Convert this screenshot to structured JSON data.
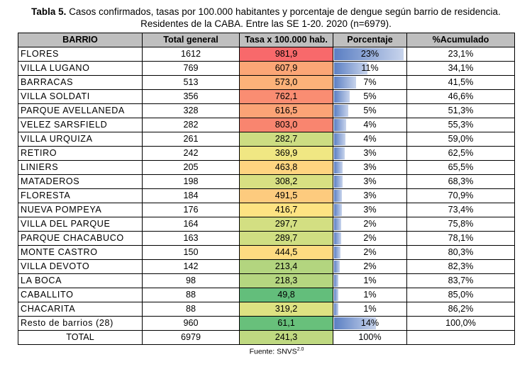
{
  "caption": {
    "label": "Tabla 5.",
    "line1": " Casos confirmados, tasas por 100.000 habitantes y porcentaje de dengue según barrio de residencia.",
    "line2": "Residentes de la CABA. Entre las SE 1-20. 2020 (n=6979)."
  },
  "headers": [
    "BARRIO",
    "Total general",
    "Tasa x 100.000 hab.",
    "Porcentaje",
    "%Acumulado"
  ],
  "rows": [
    {
      "barrio": "FLORES",
      "total": "1612",
      "tasa": "981,9",
      "pct": "23%",
      "pct_value": 23.1,
      "acum": "23,1%",
      "tasa_color": "#f8696b"
    },
    {
      "barrio": "VILLA LUGANO",
      "total": "769",
      "tasa": "607,9",
      "pct": "11%",
      "pct_value": 11.0,
      "acum": "34,1%",
      "tasa_color": "#fba676"
    },
    {
      "barrio": "BARRACAS",
      "total": "513",
      "tasa": "573,0",
      "pct": "7%",
      "pct_value": 7.4,
      "acum": "41,5%",
      "tasa_color": "#fcb279"
    },
    {
      "barrio": "VILLA SOLDATI",
      "total": "356",
      "tasa": "762,1",
      "pct": "5%",
      "pct_value": 5.1,
      "acum": "46,6%",
      "tasa_color": "#fa8d72"
    },
    {
      "barrio": "PARQUE AVELLANEDA",
      "total": "328",
      "tasa": "616,5",
      "pct": "5%",
      "pct_value": 4.7,
      "acum": "51,3%",
      "tasa_color": "#fba376"
    },
    {
      "barrio": "VELEZ SARSFIELD",
      "total": "282",
      "tasa": "803,0",
      "pct": "4%",
      "pct_value": 4.0,
      "acum": "55,3%",
      "tasa_color": "#f9856f"
    },
    {
      "barrio": "VILLA URQUIZA",
      "total": "261",
      "tasa": "282,7",
      "pct": "4%",
      "pct_value": 3.7,
      "acum": "59,0%",
      "tasa_color": "#cddd82"
    },
    {
      "barrio": "RETIRO",
      "total": "242",
      "tasa": "369,9",
      "pct": "3%",
      "pct_value": 3.5,
      "acum": "62,5%",
      "tasa_color": "#f0e783"
    },
    {
      "barrio": "LINIERS",
      "total": "205",
      "tasa": "463,8",
      "pct": "3%",
      "pct_value": 2.9,
      "acum": "65,5%",
      "tasa_color": "#fed480"
    },
    {
      "barrio": "MATADEROS",
      "total": "198",
      "tasa": "308,2",
      "pct": "3%",
      "pct_value": 2.8,
      "acum": "68,3%",
      "tasa_color": "#d8e082"
    },
    {
      "barrio": "FLORESTA",
      "total": "184",
      "tasa": "491,5",
      "pct": "3%",
      "pct_value": 2.6,
      "acum": "70,9%",
      "tasa_color": "#fdcb7e"
    },
    {
      "barrio": "NUEVA POMPEYA",
      "total": "176",
      "tasa": "416,7",
      "pct": "3%",
      "pct_value": 2.5,
      "acum": "73,4%",
      "tasa_color": "#fee382"
    },
    {
      "barrio": "VILLA DEL PARQUE",
      "total": "164",
      "tasa": "297,7",
      "pct": "2%",
      "pct_value": 2.3,
      "acum": "75,8%",
      "tasa_color": "#d3df82"
    },
    {
      "barrio": "PARQUE CHACABUCO",
      "total": "163",
      "tasa": "289,7",
      "pct": "2%",
      "pct_value": 2.3,
      "acum": "78,1%",
      "tasa_color": "#d0de82"
    },
    {
      "barrio": "MONTE CASTRO",
      "total": "150",
      "tasa": "444,5",
      "pct": "2%",
      "pct_value": 2.1,
      "acum": "80,3%",
      "tasa_color": "#fedb81"
    },
    {
      "barrio": "VILLA DEVOTO",
      "total": "142",
      "tasa": "213,4",
      "pct": "2%",
      "pct_value": 2.0,
      "acum": "82,3%",
      "tasa_color": "#b3d57f"
    },
    {
      "barrio": "LA BOCA",
      "total": "98",
      "tasa": "218,3",
      "pct": "1%",
      "pct_value": 1.4,
      "acum": "83,7%",
      "tasa_color": "#b5d680"
    },
    {
      "barrio": "CABALLITO",
      "total": "88",
      "tasa": "49,8",
      "pct": "1%",
      "pct_value": 1.3,
      "acum": "85,0%",
      "tasa_color": "#63be7b"
    },
    {
      "barrio": "CHACARITA",
      "total": "88",
      "tasa": "319,2",
      "pct": "1%",
      "pct_value": 1.3,
      "acum": "86,2%",
      "tasa_color": "#dde282"
    },
    {
      "barrio": "Resto de barrios (28)",
      "total": "960",
      "tasa": "61,1",
      "pct": "14%",
      "pct_value": 13.8,
      "acum": "100,0%",
      "tasa_color": "#68c07b"
    }
  ],
  "total_row": {
    "label": "TOTAL",
    "total": "6979",
    "tasa": "241,3",
    "pct": "100%",
    "tasa_color": "#bfd981"
  },
  "footer": {
    "text": "Fuente: SNVS",
    "sup": "2.0"
  }
}
